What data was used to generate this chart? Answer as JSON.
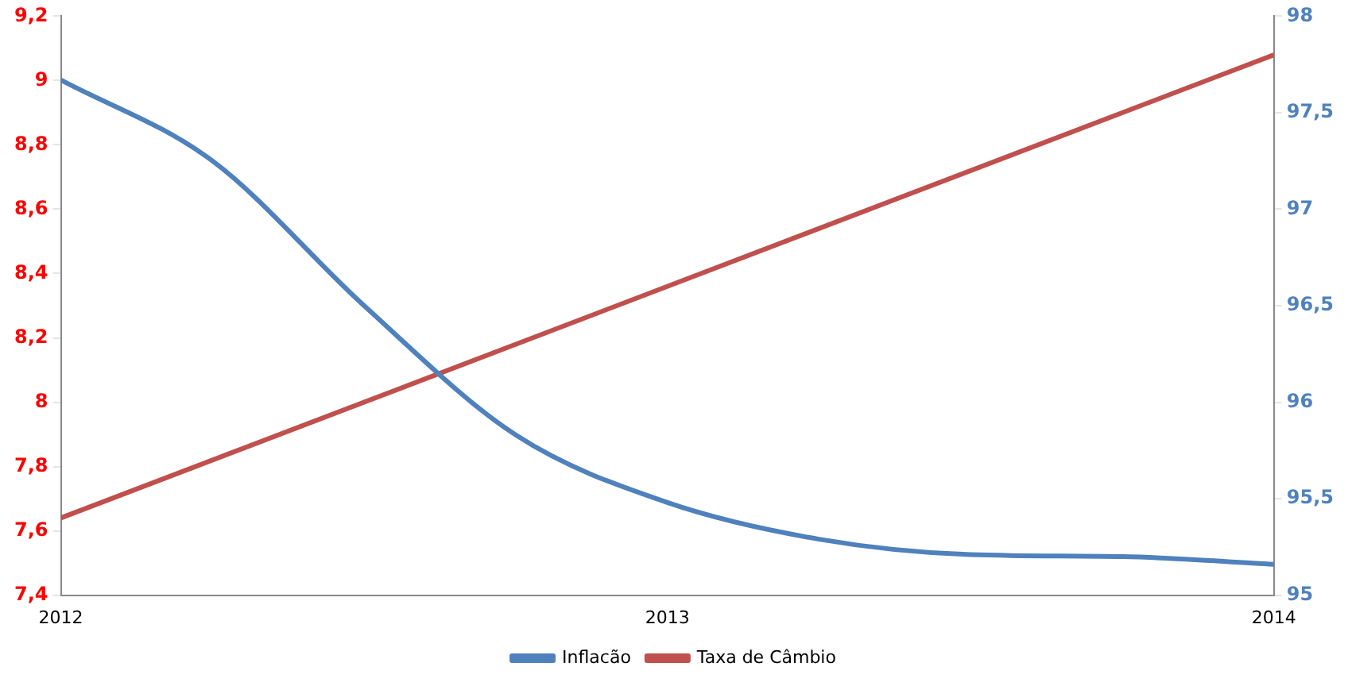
{
  "chart_data": {
    "type": "line",
    "x": [
      2012,
      2012.25,
      2012.5,
      2012.75,
      2013,
      2013.25,
      2013.5,
      2013.75,
      2014
    ],
    "xlim": [
      2012,
      2014
    ],
    "xticks": [
      2012,
      2013,
      2014
    ],
    "ylim": [
      7.4,
      9.2
    ],
    "yticks": [
      {
        "value": 7.4,
        "label": "7,4"
      },
      {
        "value": 7.6,
        "label": "7,6"
      },
      {
        "value": 7.8,
        "label": "7,8"
      },
      8,
      {
        "value": 8.2,
        "label": "8,2"
      },
      {
        "value": 8.4,
        "label": "8,4"
      },
      {
        "value": 8.6,
        "label": "8,6"
      },
      {
        "value": 8.8,
        "label": "8,8"
      },
      9,
      {
        "value": 9.2,
        "label": "9,2"
      }
    ],
    "y2lim": [
      95,
      98
    ],
    "y2ticks": [
      95,
      {
        "value": 95.5,
        "label": "95,5"
      },
      96,
      {
        "value": 96.5,
        "label": "96,5"
      },
      97,
      {
        "value": 97.5,
        "label": "97,5"
      },
      98
    ],
    "grid": false,
    "legend": "bottom",
    "marker": "none",
    "series": [
      {
        "name": "Inflacão",
        "color": "#4f81bd",
        "axis": "y2",
        "values": [
          97.67,
          97.25,
          96.5,
          95.83,
          95.48,
          95.29,
          95.21,
          95.2,
          95.16
        ]
      },
      {
        "name": "Taxa de Câmbio",
        "color": "#c0504d",
        "axis": "y",
        "x": [
          2012,
          2014
        ],
        "values": [
          7.64,
          9.08
        ]
      }
    ]
  }
}
